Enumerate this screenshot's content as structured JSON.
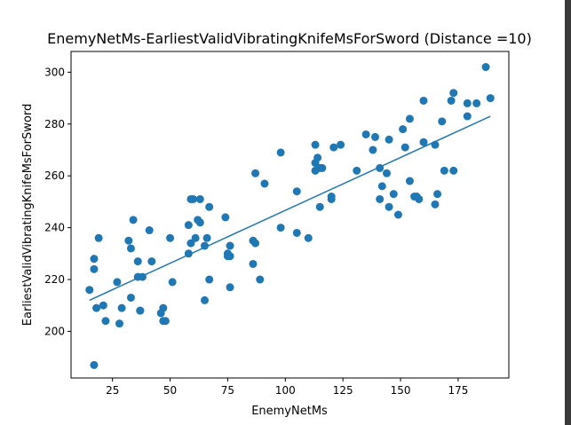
{
  "colors": {
    "marker": "#1f77b4",
    "fit_line": "#1f77b4",
    "axes": "#000000",
    "background": "#ffffff"
  },
  "chart_data": {
    "type": "scatter",
    "title": "EnemyNetMs-EarliestValidVibratingKnifeMsForSword  (Distance =10)",
    "xlabel": "EnemyNetMs",
    "ylabel": "EarliestValidVibratingKnifeMsForSword",
    "xlim": [
      7,
      197
    ],
    "ylim": [
      182,
      308
    ],
    "xticks": [
      25,
      50,
      75,
      100,
      125,
      150,
      175
    ],
    "yticks": [
      200,
      220,
      240,
      260,
      280,
      300
    ],
    "grid": false,
    "legend": "none",
    "series": [
      {
        "kind": "points",
        "x": [
          15,
          17,
          17,
          17,
          18,
          19,
          21,
          22,
          27,
          28,
          29,
          32,
          33,
          33,
          34,
          36,
          36,
          37,
          37,
          38,
          41,
          42,
          46,
          47,
          47,
          48,
          50,
          51,
          58,
          58,
          59,
          59,
          60,
          61,
          62,
          63,
          63,
          65,
          65,
          66,
          67,
          67,
          74,
          75,
          75,
          76,
          76,
          76,
          86,
          86,
          87,
          87,
          89,
          91,
          98,
          98,
          105,
          105,
          110,
          113,
          113,
          113,
          114,
          115,
          115,
          116,
          120,
          120,
          121,
          124,
          131,
          135,
          138,
          139,
          141,
          141,
          142,
          144,
          145,
          145,
          147,
          149,
          151,
          152,
          154,
          154,
          156,
          157,
          158,
          160,
          160,
          165,
          165,
          166,
          168,
          169,
          172,
          173,
          173,
          179,
          179,
          183,
          187,
          189
        ],
        "y": [
          216,
          187,
          224,
          228,
          209,
          236,
          210,
          204,
          219,
          203,
          209,
          235,
          232,
          213,
          243,
          227,
          221,
          208,
          208,
          221,
          239,
          227,
          207,
          204,
          209,
          204,
          236,
          219,
          241,
          230,
          234,
          251,
          251,
          236,
          243,
          251,
          242,
          233,
          212,
          236,
          220,
          248,
          244,
          229,
          230,
          233,
          217,
          229,
          226,
          235,
          234,
          261,
          220,
          257,
          240,
          269,
          254,
          238,
          236,
          262,
          272,
          265,
          267,
          248,
          263,
          263,
          251,
          252,
          271,
          272,
          262,
          276,
          270,
          275,
          263,
          251,
          256,
          261,
          248,
          274,
          253,
          245,
          278,
          271,
          282,
          258,
          252,
          252,
          251,
          289,
          273,
          249,
          272,
          253,
          281,
          262,
          289,
          292,
          262,
          288,
          283,
          288,
          302,
          290
        ]
      },
      {
        "kind": "fit_line",
        "x": [
          15,
          189
        ],
        "y": [
          212,
          283
        ]
      }
    ]
  }
}
